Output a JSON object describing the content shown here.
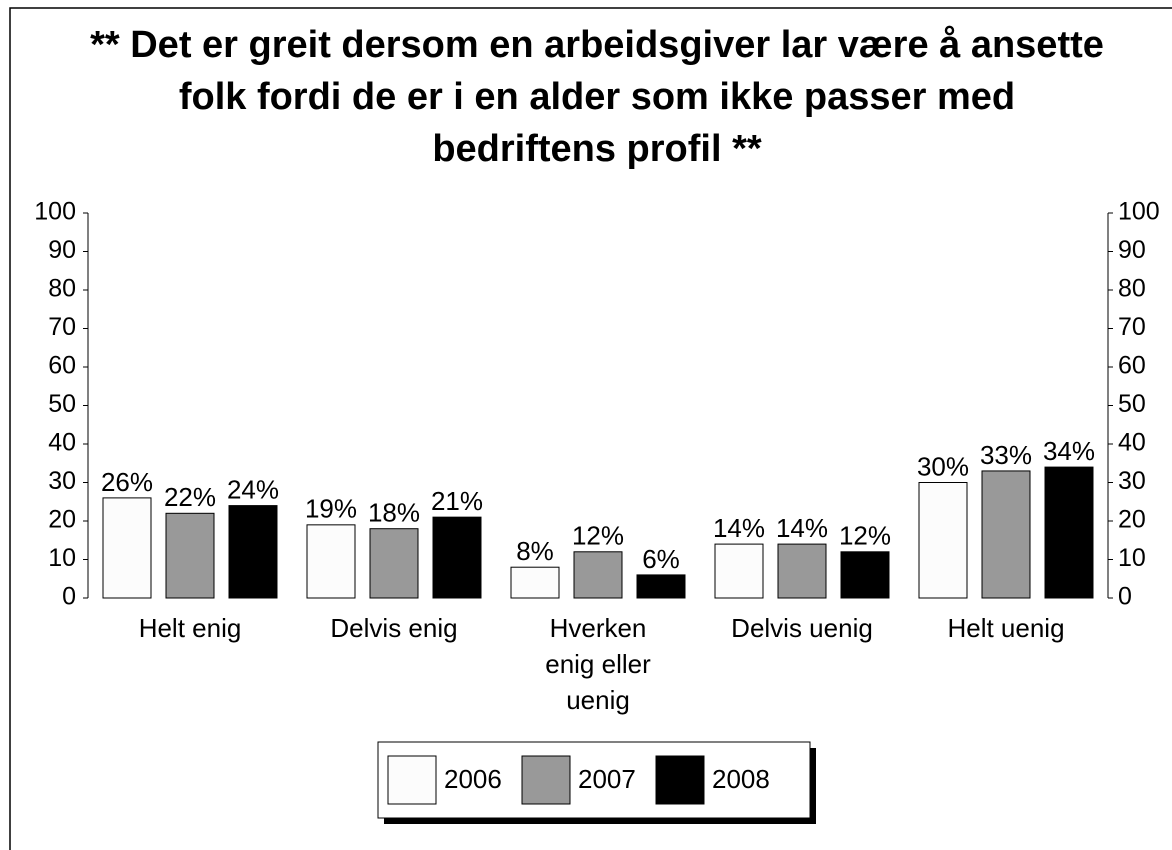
{
  "chart_data": {
    "type": "bar",
    "title": [
      "** Det er greit dersom en arbeidsgiver lar være å ansette",
      "folk fordi de er i en alder som ikke passer med",
      "bedriftens profil **"
    ],
    "categories": [
      [
        "Helt enig"
      ],
      [
        "Delvis enig"
      ],
      [
        "Hverken",
        "enig eller",
        "uenig"
      ],
      [
        "Delvis uenig"
      ],
      [
        "Helt uenig"
      ]
    ],
    "series": [
      {
        "name": "2006",
        "color": "#fcfcfc",
        "values": [
          26,
          19,
          8,
          14,
          30
        ],
        "value_labels": [
          "26%",
          "19%",
          "8%",
          "14%",
          "30%"
        ]
      },
      {
        "name": "2007",
        "color": "#999999",
        "values": [
          22,
          18,
          12,
          14,
          33
        ],
        "value_labels": [
          "22%",
          "18%",
          "12%",
          "14%",
          "33%"
        ]
      },
      {
        "name": "2008",
        "color": "#000000",
        "values": [
          24,
          21,
          6,
          12,
          34
        ],
        "value_labels": [
          "24%",
          "21%",
          "6%",
          "12%",
          "34%"
        ]
      }
    ],
    "ylim": [
      0,
      100
    ],
    "yticks": [
      0,
      10,
      20,
      30,
      40,
      50,
      60,
      70,
      80,
      90,
      100
    ],
    "legend": "bottom"
  }
}
